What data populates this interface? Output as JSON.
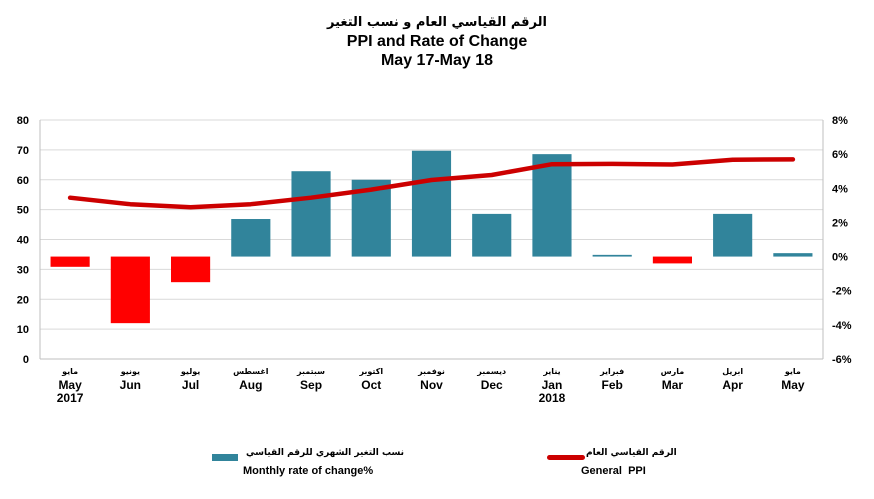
{
  "title": {
    "arabic": "الرقم القياسي العام و نسب التغير",
    "english": "PPI and Rate of Change",
    "period": "May 17-May 18"
  },
  "colors": {
    "bars_positive": "#31849b",
    "bars_negative": "#ff0000",
    "line": "#cc0000"
  },
  "chart_data": {
    "type": "bar",
    "categories": [
      "May 2017",
      "Jun",
      "Jul",
      "Aug",
      "Sep",
      "Oct",
      "Nov",
      "Dec",
      "Jan 2018",
      "Feb",
      "Mar",
      "Apr",
      "May"
    ],
    "category_labels": [
      {
        "ar": "مايو",
        "en": "May",
        "year": "2017"
      },
      {
        "ar": "يونيو",
        "en": "Jun",
        "year": ""
      },
      {
        "ar": "يوليو",
        "en": "Jul",
        "year": ""
      },
      {
        "ar": "اغسطس",
        "en": "Aug",
        "year": ""
      },
      {
        "ar": "سبتمبر",
        "en": "Sep",
        "year": ""
      },
      {
        "ar": "اكتوبر",
        "en": "Oct",
        "year": ""
      },
      {
        "ar": "نوفمبر",
        "en": "Nov",
        "year": ""
      },
      {
        "ar": "ديسمبر",
        "en": "Dec",
        "year": ""
      },
      {
        "ar": "يناير",
        "en": "Jan",
        "year": "2018"
      },
      {
        "ar": "فبراير",
        "en": "Feb",
        "year": ""
      },
      {
        "ar": "مارس",
        "en": "Mar",
        "year": ""
      },
      {
        "ar": "ابريل",
        "en": "Apr",
        "year": ""
      },
      {
        "ar": "مايو",
        "en": "May",
        "year": ""
      }
    ],
    "series": [
      {
        "name": "Monthly rate of change%",
        "name_ar": "نسب التغير الشهري للرقم القياسي",
        "type": "bar",
        "axis": "right",
        "values": [
          -0.6,
          -3.9,
          -1.5,
          2.2,
          5.0,
          4.5,
          6.2,
          2.5,
          6.0,
          0.1,
          -0.4,
          2.5,
          0.2
        ]
      },
      {
        "name": "General  PPI",
        "name_ar": "الرقم القياسي العام",
        "type": "line",
        "axis": "left",
        "values": [
          54.0,
          51.8,
          50.8,
          51.8,
          54.0,
          56.7,
          59.9,
          61.6,
          65.2,
          65.3,
          65.1,
          66.7,
          66.8
        ]
      }
    ],
    "y_left": {
      "min": 0,
      "max": 80,
      "ticks": [
        "0",
        "10",
        "20",
        "30",
        "40",
        "50",
        "60",
        "70",
        "80"
      ]
    },
    "y_right": {
      "min": -6,
      "max": 8,
      "ticks": [
        "-6%",
        "-4%",
        "-2%",
        "0%",
        "2%",
        "4%",
        "6%",
        "8%"
      ]
    },
    "grid": true,
    "legend_position": "bottom"
  }
}
